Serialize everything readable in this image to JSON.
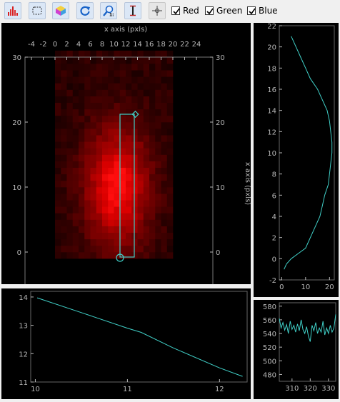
{
  "toolbar": {
    "buttons": [
      {
        "name": "histogram-button",
        "icon": "histogram-icon"
      },
      {
        "name": "roi-select-button",
        "icon": "dashed-rect-icon"
      },
      {
        "name": "color-button",
        "icon": "rgb-cube-icon"
      },
      {
        "name": "refresh-button",
        "icon": "refresh-icon"
      },
      {
        "name": "zoom-1to1-button",
        "icon": "zoom-1-1-icon"
      },
      {
        "name": "vertical-cursor-button",
        "icon": "vertical-measure-icon"
      },
      {
        "name": "crosshair-button",
        "icon": "crosshair-icon"
      }
    ],
    "checkboxes": [
      {
        "label": "Red",
        "checked": true
      },
      {
        "label": "Green",
        "checked": true
      },
      {
        "label": "Blue",
        "checked": true
      }
    ]
  },
  "colors": {
    "trace": "#40d0c8",
    "heat": "#ff0000",
    "axis": "#b8b8b8"
  },
  "main_plot": {
    "top_axis_label": "x axis (pxls)",
    "right_axis_label": "x axis (pxls)",
    "x_ticks": [
      "-4",
      "-2",
      "0",
      "2",
      "4",
      "6",
      "8",
      "10",
      "12",
      "14",
      "16",
      "18",
      "20",
      "22",
      "24"
    ],
    "y_ticks": [
      "0",
      "10",
      "20",
      "30"
    ]
  },
  "chart_data": [
    {
      "type": "line",
      "name": "vertical-profile",
      "xlabel": "",
      "ylabel": "",
      "xlim": [
        -1,
        22
      ],
      "ylim": [
        -2,
        22
      ],
      "x_ticks": [
        "0",
        "10",
        "20"
      ],
      "y_ticks": [
        "-2",
        "0",
        "2",
        "4",
        "6",
        "8",
        "10",
        "12",
        "14",
        "16",
        "18",
        "20",
        "22"
      ],
      "x": [
        1,
        2,
        4,
        7,
        10,
        12,
        14,
        16,
        17,
        18,
        19.5,
        20,
        20.5,
        21,
        21,
        20.5,
        20,
        19,
        17,
        15,
        12,
        10,
        8,
        6,
        4
      ],
      "y": [
        -1,
        -0.5,
        0,
        0.5,
        1,
        2,
        3,
        4,
        5,
        6,
        7,
        8,
        9,
        10,
        11,
        12,
        13,
        14,
        15,
        16,
        17,
        18,
        19,
        20,
        21
      ]
    },
    {
      "type": "line",
      "name": "line-profile",
      "xlabel": "",
      "ylabel": "",
      "xlim": [
        9.95,
        12.3
      ],
      "ylim": [
        11,
        14.2
      ],
      "x_ticks": [
        "10",
        "11",
        "12"
      ],
      "y_ticks": [
        "11",
        "12",
        "13",
        "14"
      ],
      "x": [
        10.02,
        10.5,
        11.0,
        11.15,
        11.5,
        12.0,
        12.25
      ],
      "y": [
        13.97,
        13.45,
        12.9,
        12.75,
        12.2,
        11.5,
        11.2
      ]
    },
    {
      "type": "line",
      "name": "intensity-profile",
      "xlabel": "",
      "ylabel": "",
      "xlim": [
        303,
        334
      ],
      "ylim": [
        470,
        585
      ],
      "x_ticks": [
        "310",
        "320",
        "330"
      ],
      "y_ticks": [
        "480",
        "500",
        "520",
        "540",
        "560",
        "580"
      ],
      "x": [
        303,
        304,
        305,
        306,
        307,
        308,
        309,
        310,
        311,
        312,
        313,
        314,
        315,
        316,
        317,
        318,
        319,
        320,
        321,
        322,
        323,
        324,
        325,
        326,
        327,
        328,
        329,
        330,
        331,
        332,
        333,
        334
      ],
      "y": [
        562,
        548,
        556,
        545,
        553,
        540,
        558,
        546,
        552,
        542,
        554,
        544,
        560,
        546,
        540,
        550,
        536,
        528,
        552,
        544,
        556,
        540,
        548,
        542,
        558,
        538,
        548,
        540,
        552,
        542,
        548,
        568
      ]
    }
  ]
}
